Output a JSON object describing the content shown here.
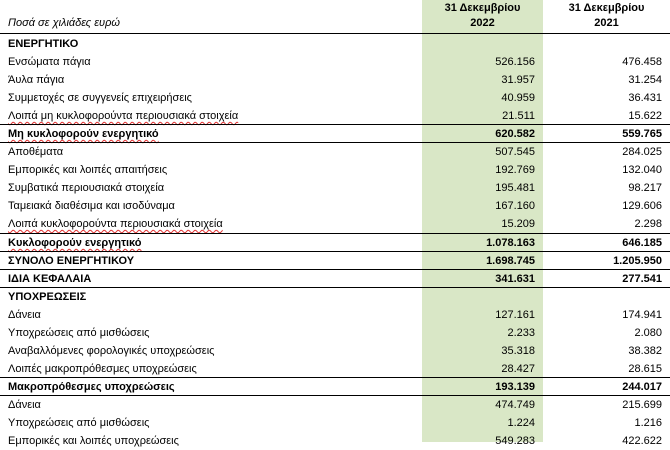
{
  "header": {
    "caption": "Ποσά σε χιλιάδες ευρώ",
    "col2022_line1": "31 Δεκεμβρίου",
    "col2022_line2": "2022",
    "col2021_line1": "31 Δεκεμβρίου",
    "col2021_line2": "2021"
  },
  "rows": [
    {
      "label": "ΕΝΕΡΓΗΤΙΚΟ",
      "v2022": "",
      "v2021": ""
    },
    {
      "label": "Ενσώματα πάγια",
      "v2022": "526.156",
      "v2021": "476.458"
    },
    {
      "label": "Άυλα πάγια",
      "v2022": "31.957",
      "v2021": "31.254"
    },
    {
      "label": "Συμμετοχές σε συγγενείς επιχειρήσεις",
      "v2022": "40.959",
      "v2021": "36.431"
    },
    {
      "label": "Λοιπά μη κυκλοφορούντα περιουσιακά στοιχεία",
      "v2022": "21.511",
      "v2021": "15.622"
    },
    {
      "label": "Μη κυκλοφορούν ενεργητικό",
      "v2022": "620.582",
      "v2021": "559.765"
    },
    {
      "label": "Αποθέματα",
      "v2022": "507.545",
      "v2021": "284.025"
    },
    {
      "label": "Εμπορικές και λοιπές απαιτήσεις",
      "v2022": "192.769",
      "v2021": "132.040"
    },
    {
      "label": "Συμβατικά περιουσιακά στοιχεία",
      "v2022": "195.481",
      "v2021": "98.217"
    },
    {
      "label": "Ταμειακά διαθέσιμα και ισοδύναμα",
      "v2022": "167.160",
      "v2021": "129.606"
    },
    {
      "label": "Λοιπά κυκλοφορούντα περιουσιακά στοιχεία",
      "v2022": "15.209",
      "v2021": "2.298"
    },
    {
      "label": "Κυκλοφορούν ενεργητικό",
      "v2022": "1.078.163",
      "v2021": "646.185"
    },
    {
      "label": "ΣΥΝΟΛΟ ΕΝΕΡΓΗΤΙΚΟΥ",
      "v2022": "1.698.745",
      "v2021": "1.205.950"
    },
    {
      "label": "ΙΔΙΑ ΚΕΦΑΛΑΙΑ",
      "v2022": "341.631",
      "v2021": "277.541"
    },
    {
      "label": "ΥΠΟΧΡΕΩΣΕΙΣ",
      "v2022": "",
      "v2021": ""
    },
    {
      "label": "Δάνεια",
      "v2022": "127.161",
      "v2021": "174.941"
    },
    {
      "label": "Υποχρεώσεις από μισθώσεις",
      "v2022": "2.233",
      "v2021": "2.080"
    },
    {
      "label": "Αναβαλλόμενες φορολογικές υποχρεώσεις",
      "v2022": "35.318",
      "v2021": "38.382"
    },
    {
      "label": "Λοιπές μακροπρόθεσμες υποχρεώσεις",
      "v2022": "28.427",
      "v2021": "28.615"
    },
    {
      "label": "Μακροπρόθεσμες υποχρεώσεις",
      "v2022": "193.139",
      "v2021": "244.017"
    },
    {
      "label": "Δάνεια",
      "v2022": "474.749",
      "v2021": "215.699"
    },
    {
      "label": "Υποχρεώσεις από μισθώσεις",
      "v2022": "1.224",
      "v2021": "1.216"
    },
    {
      "label": "Εμπορικές και λοιπές υποχρεώσεις",
      "v2022": "549.283",
      "v2021": "422.622"
    }
  ]
}
